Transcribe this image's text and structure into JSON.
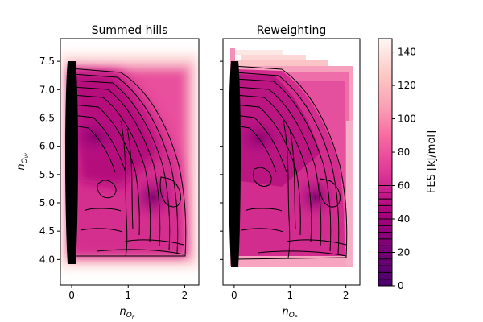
{
  "chart_data": [
    {
      "type": "heatmap",
      "title": "Summed hills",
      "xlabel_base": "n",
      "xlabel_sub": "O",
      "xlabel_subsub": "P",
      "ylabel_base": "n",
      "ylabel_sub": "O",
      "ylabel_subsub": "W",
      "xlim": [
        -0.2,
        2.25
      ],
      "ylim": [
        3.55,
        7.9
      ],
      "xticks": [
        0,
        1,
        2
      ],
      "yticks": [
        4.0,
        4.5,
        5.0,
        5.5,
        6.0,
        6.5,
        7.0,
        7.5
      ],
      "ytick_labels": [
        "4.0",
        "4.5",
        "5.0",
        "5.5",
        "6.0",
        "6.5",
        "7.0",
        "7.5"
      ],
      "colorscale": "RdPu_r",
      "region": {
        "x": [
          0.0,
          2.05
        ],
        "y": [
          4.02,
          7.45
        ]
      },
      "contours": "black lines, levels 0–60 kJ/mol"
    },
    {
      "type": "heatmap",
      "title": "Reweighting",
      "xlim": [
        -0.2,
        2.25
      ],
      "ylim": [
        3.55,
        7.9
      ],
      "xticks": [
        0,
        1,
        2
      ],
      "yticks": [
        4.0,
        4.5,
        5.0,
        5.5,
        6.0,
        6.5,
        7.0,
        7.5
      ],
      "colorscale": "RdPu_r",
      "region": {
        "x": [
          0.0,
          2.1
        ],
        "y": [
          3.95,
          7.6
        ]
      },
      "contours": "black lines, levels 0–60 kJ/mol"
    }
  ],
  "colorbar": {
    "label": "FES [kJ/mol]",
    "range": [
      0,
      148
    ],
    "ticks": [
      0,
      20,
      40,
      60,
      80,
      100,
      120,
      140
    ],
    "contour_levels": [
      0,
      4,
      8,
      12,
      16,
      20,
      24,
      28,
      32,
      36,
      40,
      44,
      48,
      52,
      56,
      60
    ]
  }
}
